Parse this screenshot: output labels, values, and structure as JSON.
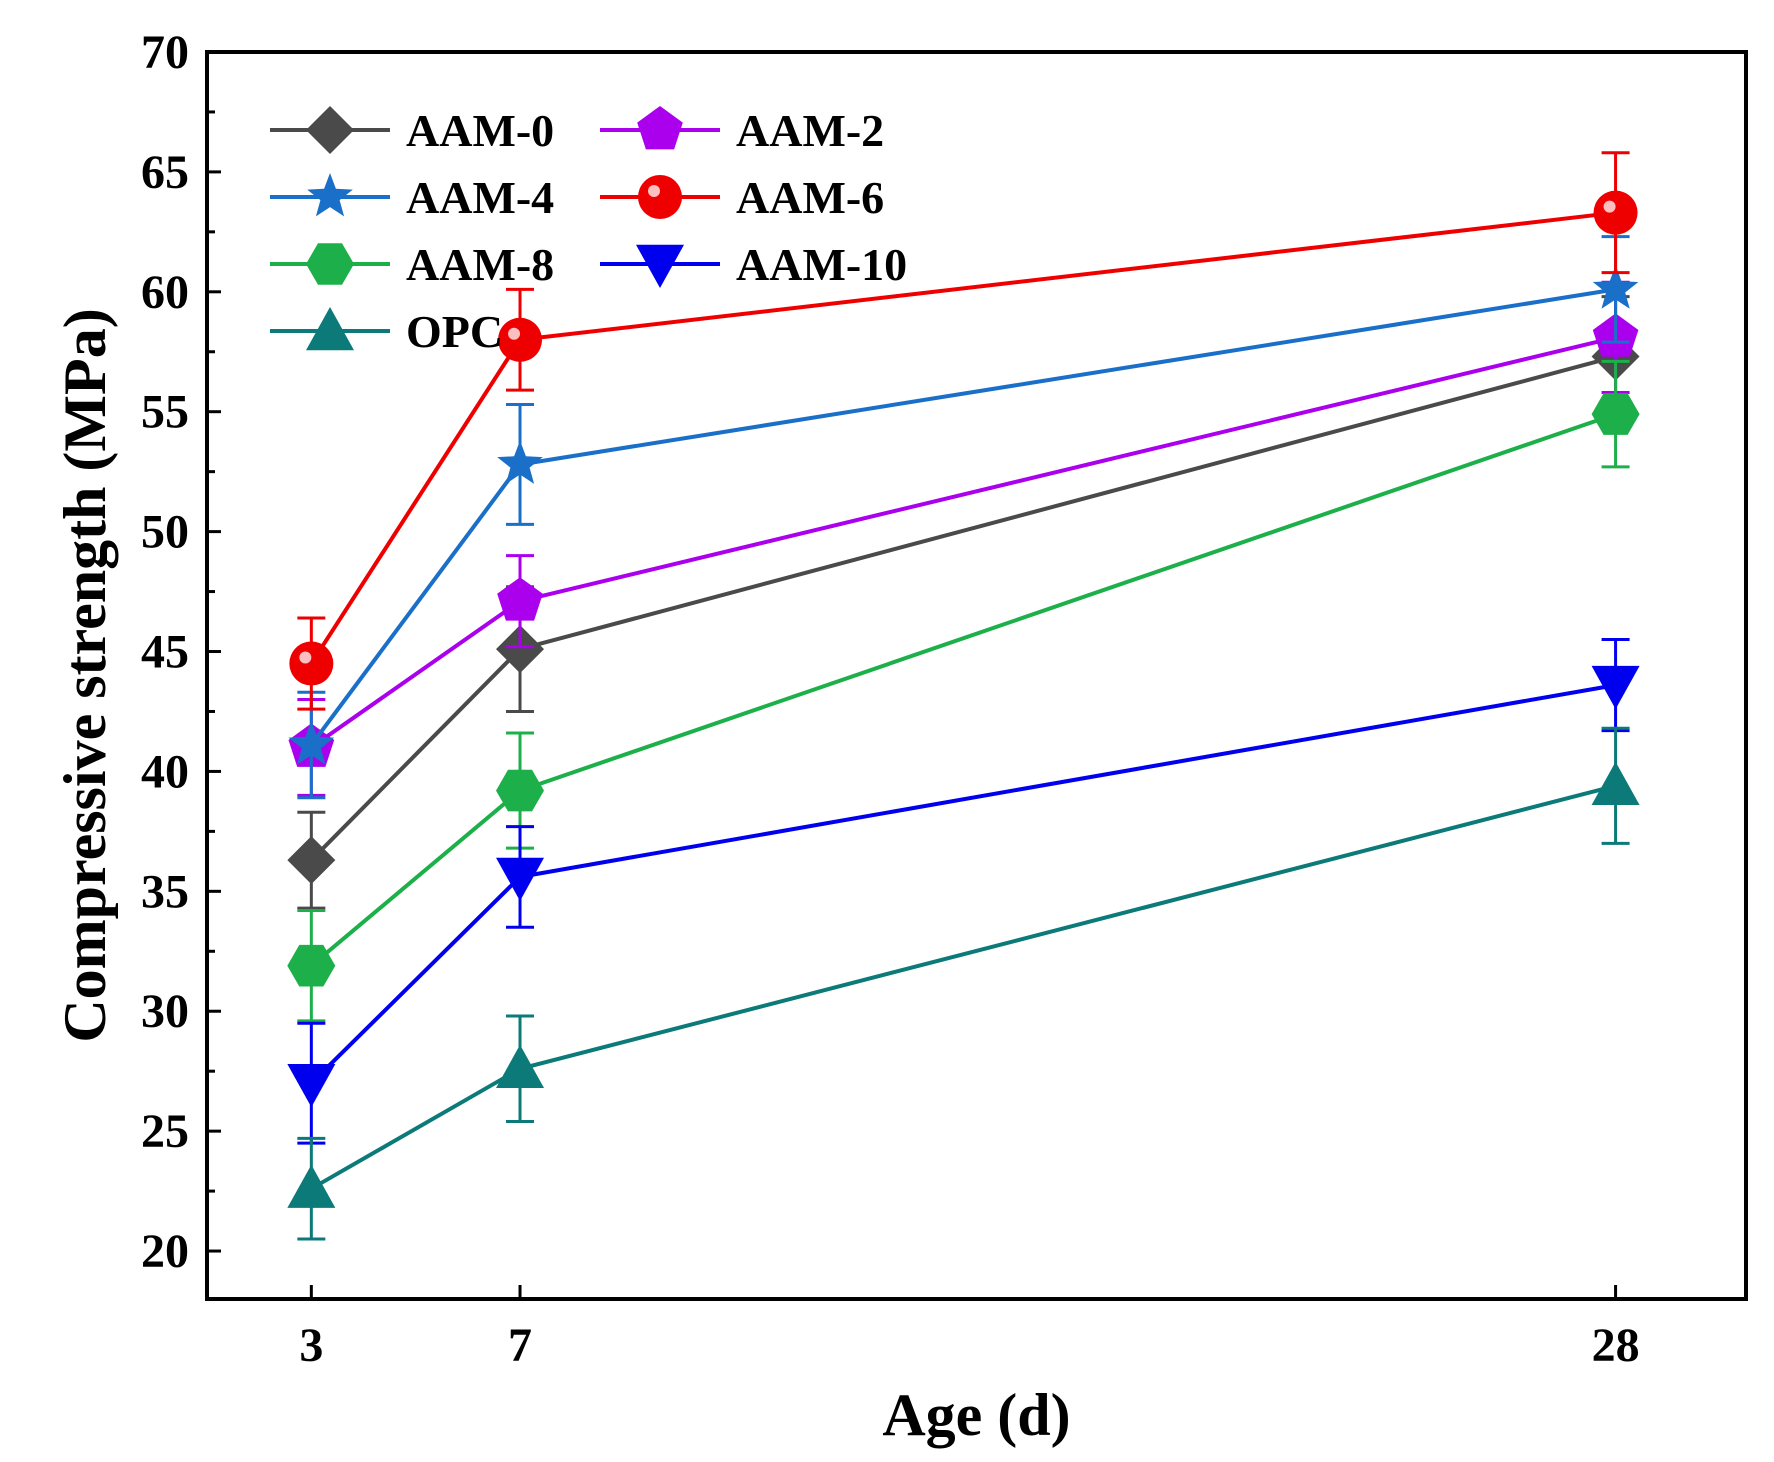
{
  "chart_data": {
    "type": "line",
    "title": "",
    "xlabel": "Age (d)",
    "ylabel": "Compressive strength (MPa)",
    "x": [
      3,
      7,
      28
    ],
    "x_tick_labels": [
      "3",
      "7",
      "28"
    ],
    "xlim": [
      1,
      30.5
    ],
    "ylim": [
      18,
      70
    ],
    "y_ticks": [
      20,
      25,
      30,
      35,
      40,
      45,
      50,
      55,
      60,
      65,
      70
    ],
    "y_tick_labels": [
      "20",
      "25",
      "30",
      "35",
      "40",
      "45",
      "50",
      "55",
      "60",
      "65",
      "70"
    ],
    "legend_position": "top-left",
    "series": [
      {
        "name": "AAM-0",
        "color": "#4a4a4a",
        "marker": "diamond",
        "values": [
          36.3,
          45.1,
          57.3
        ],
        "errors": [
          2.0,
          2.6,
          2.5
        ]
      },
      {
        "name": "AAM-2",
        "color": "#aa00ee",
        "marker": "pentagon",
        "values": [
          41.0,
          47.1,
          58.1
        ],
        "errors": [
          2.0,
          1.9,
          2.3
        ]
      },
      {
        "name": "AAM-4",
        "color": "#1a6fc8",
        "marker": "star",
        "values": [
          41.1,
          52.8,
          60.1
        ],
        "errors": [
          2.2,
          2.5,
          2.2
        ]
      },
      {
        "name": "AAM-6",
        "color": "#ee0000",
        "marker": "circle",
        "values": [
          44.5,
          58.0,
          63.3
        ],
        "errors": [
          1.9,
          2.1,
          2.5
        ]
      },
      {
        "name": "AAM-8",
        "color": "#1db04a",
        "marker": "hexagon",
        "values": [
          31.9,
          39.2,
          54.9
        ],
        "errors": [
          2.3,
          2.4,
          2.2
        ]
      },
      {
        "name": "AAM-10",
        "color": "#0000ee",
        "marker": "triangle-down",
        "values": [
          27.0,
          35.6,
          43.6
        ],
        "errors": [
          2.5,
          2.1,
          1.9
        ]
      },
      {
        "name": "OPC",
        "color": "#0b7a78",
        "marker": "triangle-up",
        "values": [
          22.6,
          27.6,
          39.4
        ],
        "errors": [
          2.1,
          2.2,
          2.4
        ]
      }
    ]
  }
}
